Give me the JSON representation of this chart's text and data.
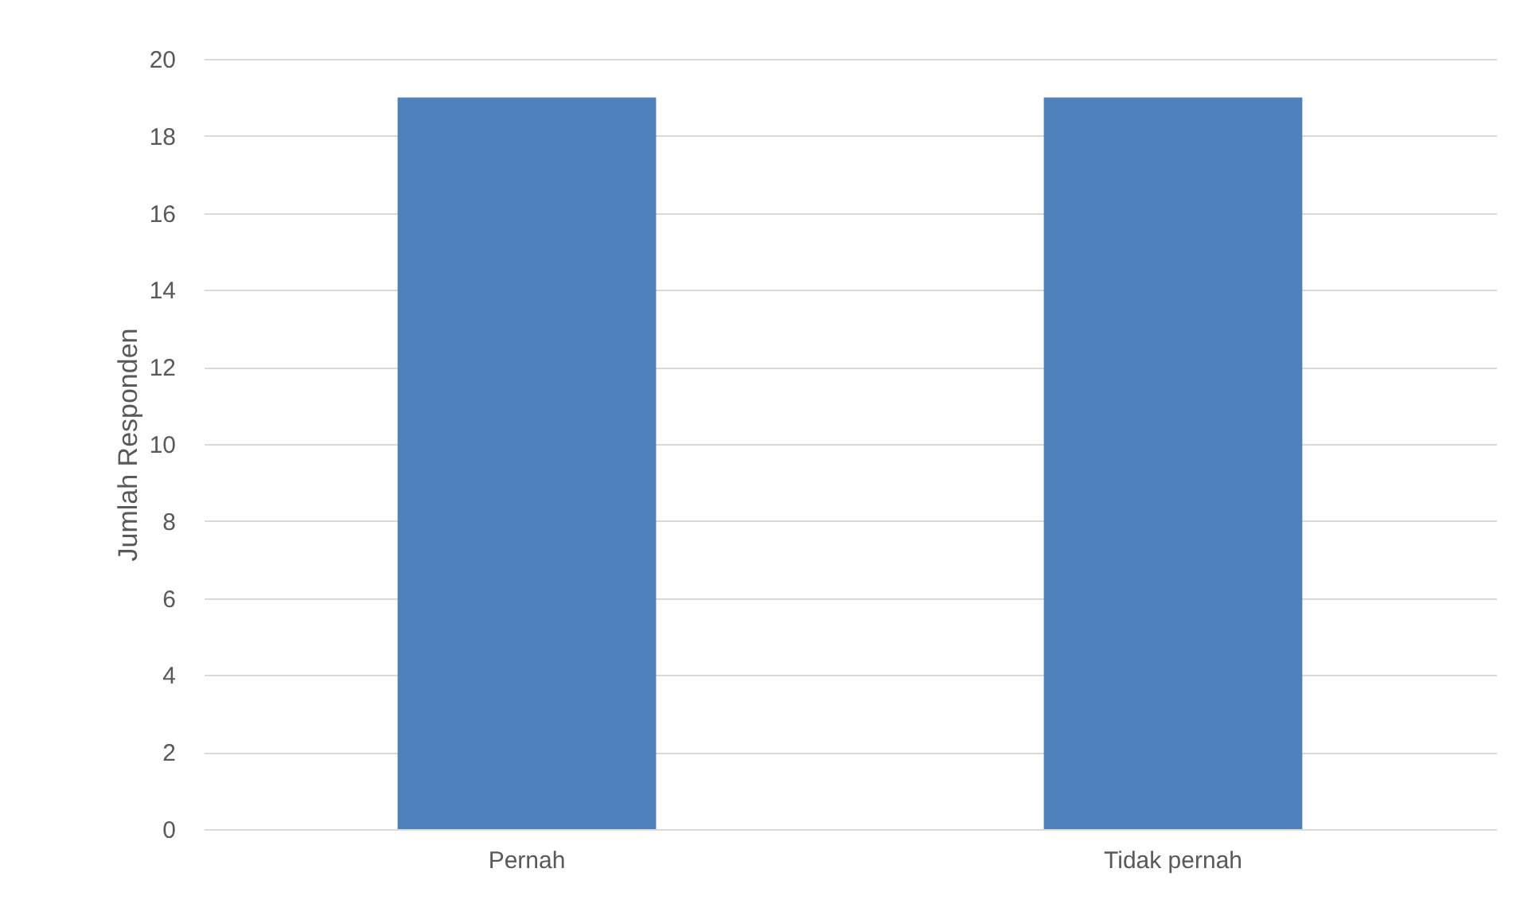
{
  "chart_data": {
    "type": "bar",
    "ylabel": "Jumlah Responden",
    "categories": [
      "Pernah",
      "Tidak pernah"
    ],
    "values": [
      19,
      19
    ],
    "color": "#4f81bd",
    "ylim": [
      0,
      20
    ],
    "yticks": [
      0,
      2,
      4,
      6,
      8,
      10,
      12,
      14,
      16,
      18,
      20
    ],
    "grid": "y"
  }
}
